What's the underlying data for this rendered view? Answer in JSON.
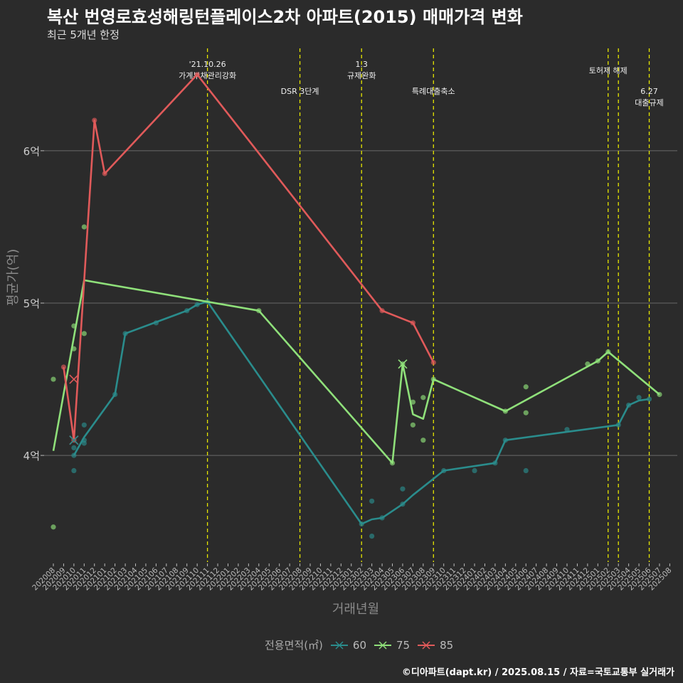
{
  "title": "복산 번영로효성해링턴플레이스2차 아파트(2015) 매매가격 변화",
  "subtitle": "최근 5개년 한정",
  "caption": "©디아파트(dapt.kr) / 2025.08.15 / 자료=국토교통부 실거래가",
  "chart_data": {
    "type": "line",
    "title": "복산 번영로효성해링턴플레이스2차 아파트(2015) 매매가격 변화",
    "xlabel": "거래년월",
    "ylabel": "평균가(억)",
    "ylim": [
      3.3,
      6.7
    ],
    "y_ticks": [
      {
        "value": 4,
        "label": "4억"
      },
      {
        "value": 5,
        "label": "5억"
      },
      {
        "value": 6,
        "label": "6억"
      }
    ],
    "categories": [
      "202008",
      "202009",
      "202010",
      "202011",
      "202012",
      "202101",
      "202102",
      "202103",
      "202104",
      "202105",
      "202106",
      "202107",
      "202108",
      "202109",
      "202110",
      "202111",
      "202112",
      "202201",
      "202202",
      "202203",
      "202204",
      "202205",
      "202206",
      "202207",
      "202208",
      "202209",
      "202210",
      "202211",
      "202212",
      "202301",
      "202302",
      "202303",
      "202304",
      "202305",
      "202306",
      "202307",
      "202308",
      "202309",
      "202310",
      "202311",
      "202312",
      "202401",
      "202402",
      "202403",
      "202404",
      "202405",
      "202406",
      "202407",
      "202408",
      "202409",
      "202410",
      "202411",
      "202412",
      "202501",
      "202502",
      "202503",
      "202504",
      "202505",
      "202506",
      "202507",
      "202508"
    ],
    "legend_title": "전용면적(㎡)",
    "series": [
      {
        "name": "60",
        "color": "#2a8c8c",
        "line": [
          [
            2,
            4.0
          ],
          [
            3,
            4.12
          ],
          [
            6,
            4.4
          ],
          [
            7,
            4.8
          ],
          [
            13,
            4.95
          ],
          [
            14,
            4.99
          ],
          [
            15,
            5.01
          ],
          [
            30,
            3.55
          ],
          [
            31,
            3.58
          ],
          [
            32,
            3.59
          ],
          [
            34,
            3.68
          ],
          [
            35,
            3.74
          ],
          [
            38,
            3.9
          ],
          [
            43,
            3.95
          ],
          [
            44,
            4.1
          ],
          [
            55,
            4.2
          ],
          [
            56,
            4.33
          ],
          [
            57,
            4.36
          ],
          [
            58,
            4.37
          ]
        ],
        "points": [
          [
            2,
            3.9
          ],
          [
            2,
            4.05
          ],
          [
            2,
            4.0
          ],
          [
            3,
            4.2
          ],
          [
            3,
            4.1
          ],
          [
            3,
            4.08
          ],
          [
            6,
            4.4
          ],
          [
            7,
            4.8
          ],
          [
            10,
            4.87
          ],
          [
            13,
            4.95
          ],
          [
            14,
            4.99
          ],
          [
            15,
            5.01
          ],
          [
            30,
            3.55
          ],
          [
            31,
            3.7
          ],
          [
            31,
            3.47
          ],
          [
            32,
            3.59
          ],
          [
            34,
            3.78
          ],
          [
            34,
            3.68
          ],
          [
            38,
            3.9
          ],
          [
            41,
            3.9
          ],
          [
            43,
            3.95
          ],
          [
            44,
            4.1
          ],
          [
            46,
            3.9
          ],
          [
            50,
            4.17
          ],
          [
            55,
            4.2
          ],
          [
            56,
            4.33
          ],
          [
            57,
            4.38
          ],
          [
            58,
            4.37
          ]
        ]
      },
      {
        "name": "75",
        "color": "#8fe07a",
        "line": [
          [
            0,
            4.03
          ],
          [
            3,
            5.15
          ],
          [
            20,
            4.95
          ],
          [
            33,
            3.95
          ],
          [
            34,
            4.6
          ],
          [
            35,
            4.27
          ],
          [
            36,
            4.24
          ],
          [
            37,
            4.5
          ],
          [
            44,
            4.29
          ],
          [
            53,
            4.62
          ],
          [
            54,
            4.68
          ],
          [
            59,
            4.4
          ]
        ],
        "points": [
          [
            0,
            4.5
          ],
          [
            0,
            3.53
          ],
          [
            2,
            4.85
          ],
          [
            2,
            4.7
          ],
          [
            3,
            5.5
          ],
          [
            3,
            4.8
          ],
          [
            20,
            4.95
          ],
          [
            33,
            3.95
          ],
          [
            34,
            4.6
          ],
          [
            35,
            4.35
          ],
          [
            35,
            4.2
          ],
          [
            36,
            4.38
          ],
          [
            36,
            4.1
          ],
          [
            37,
            4.5
          ],
          [
            44,
            4.29
          ],
          [
            46,
            4.45
          ],
          [
            46,
            4.28
          ],
          [
            52,
            4.6
          ],
          [
            53,
            4.62
          ],
          [
            54,
            4.68
          ],
          [
            59,
            4.4
          ]
        ]
      },
      {
        "name": "85",
        "color": "#e05a5a",
        "line": [
          [
            1,
            4.58
          ],
          [
            2,
            4.1
          ],
          [
            4,
            6.2
          ],
          [
            5,
            5.85
          ],
          [
            14,
            6.5
          ],
          [
            32,
            4.95
          ],
          [
            35,
            4.87
          ],
          [
            37,
            4.61
          ]
        ],
        "points": [
          [
            1,
            4.58
          ],
          [
            2,
            4.1
          ],
          [
            4,
            6.2
          ],
          [
            5,
            5.85
          ],
          [
            14,
            6.5
          ],
          [
            32,
            4.95
          ],
          [
            35,
            4.87
          ],
          [
            37,
            4.61
          ]
        ]
      }
    ],
    "cross_markers": [
      {
        "series": "85",
        "x": 2,
        "y": 4.5
      },
      {
        "series": "85",
        "x": 2,
        "y": 4.1
      },
      {
        "series": "60",
        "x": 2,
        "y": 4.1
      },
      {
        "series": "75",
        "x": 34,
        "y": 4.6
      }
    ],
    "events": [
      {
        "x": 15,
        "label_lines": [
          "'21.10.26",
          "가계부채관리강화"
        ],
        "level": "upper"
      },
      {
        "x": 24,
        "label_lines": [
          "DSR 3단계"
        ],
        "level": "lower"
      },
      {
        "x": 30,
        "label_lines": [
          "1.3",
          "규제완화"
        ],
        "level": "upper"
      },
      {
        "x": 37,
        "label_lines": [
          "특례대출축소"
        ],
        "level": "lower"
      },
      {
        "x": 54,
        "label_lines": [
          "토허제 해제"
        ],
        "level": "upper"
      },
      {
        "x": 55,
        "label_lines": [],
        "level": "upper"
      },
      {
        "x": 58,
        "label_lines": [
          "6.27",
          "대출규제"
        ],
        "level": "lower"
      }
    ]
  }
}
